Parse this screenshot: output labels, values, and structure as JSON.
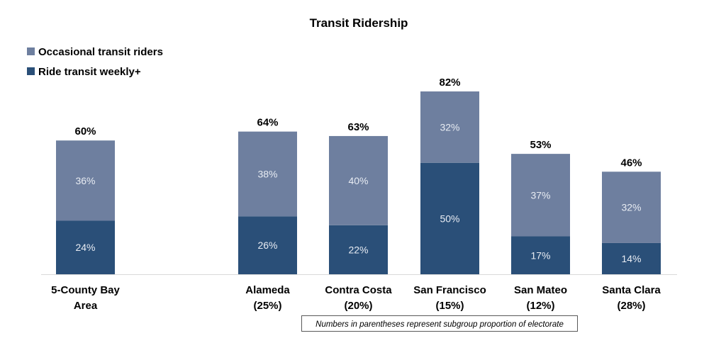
{
  "chart_data": {
    "type": "bar",
    "stacked": true,
    "title": "Transit Ridership",
    "xlabel": "",
    "ylabel": "",
    "ylim": [
      0,
      100
    ],
    "grid": false,
    "legend_position": "top-left",
    "categories": [
      {
        "name": "5-County Bay",
        "name2": "Area"
      },
      {
        "name": "Alameda",
        "name2": "(25%)"
      },
      {
        "name": "Contra Costa",
        "name2": "(20%)"
      },
      {
        "name": "San Francisco",
        "name2": "(15%)"
      },
      {
        "name": "San Mateo",
        "name2": "(12%)"
      },
      {
        "name": "Santa Clara",
        "name2": "(28%)"
      }
    ],
    "series": [
      {
        "name": "Ride transit weekly+",
        "color": "#2a4f78",
        "values": [
          24,
          26,
          22,
          50,
          17,
          14
        ],
        "labels": [
          "24%",
          "26%",
          "22%",
          "50%",
          "17%",
          "14%"
        ]
      },
      {
        "name": "Occasional transit riders",
        "color": "#6e7f9f",
        "values": [
          36,
          38,
          40,
          32,
          37,
          32
        ],
        "labels": [
          "36%",
          "38%",
          "40%",
          "32%",
          "37%",
          "32%"
        ]
      }
    ],
    "totals": [
      60,
      64,
      63,
      82,
      53,
      46
    ],
    "total_labels": [
      "60%",
      "64%",
      "63%",
      "82%",
      "53%",
      "46%"
    ],
    "legend": [
      "Occasional transit riders",
      "Ride transit weekly+"
    ],
    "annotation": "Numbers in parentheses represent subgroup proportion of electorate"
  }
}
